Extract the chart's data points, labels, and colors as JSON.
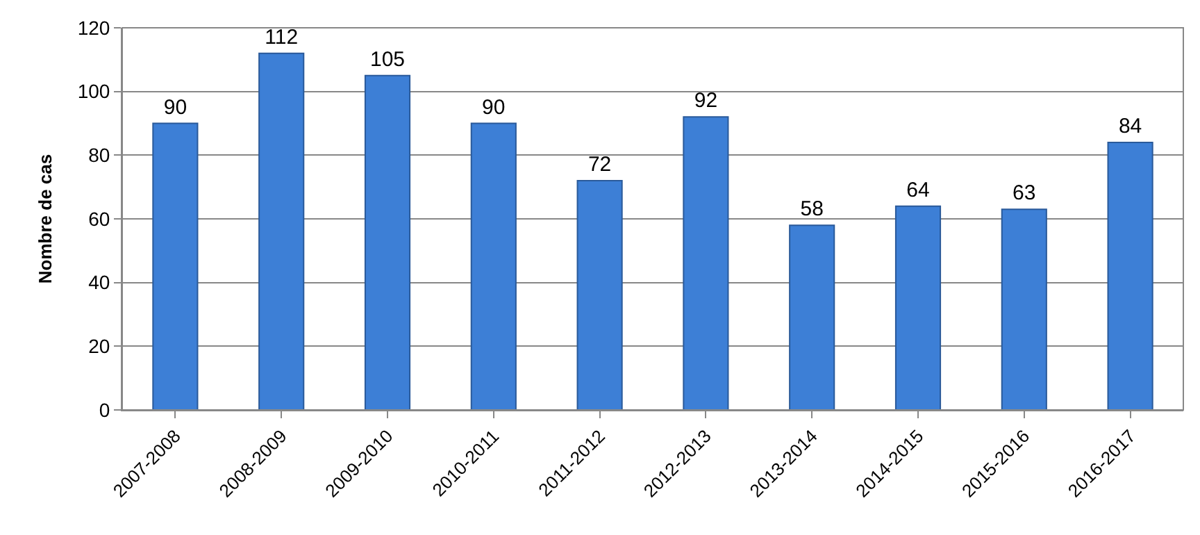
{
  "chart_data": {
    "type": "bar",
    "ylabel": "Nombre de cas",
    "categories": [
      "2007-2008",
      "2008-2009",
      "2009-2010",
      "2010-2011",
      "2011-2012",
      "2012-2013",
      "2013-2014",
      "2014-2015",
      "2015-2016",
      "2016-2017"
    ],
    "values": [
      90,
      112,
      105,
      90,
      72,
      92,
      58,
      64,
      63,
      84
    ],
    "color": "#3d7fd6",
    "ylim": [
      0,
      120
    ],
    "yticks": [
      0,
      20,
      40,
      60,
      80,
      100,
      120
    ],
    "grid": "y",
    "data_labels": true
  }
}
